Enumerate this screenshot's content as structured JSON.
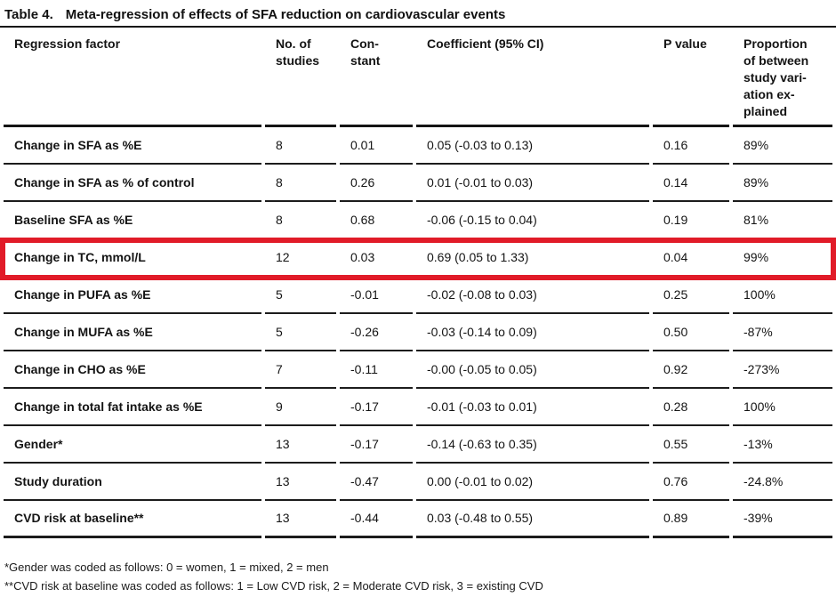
{
  "title": {
    "label": "Table 4.",
    "text": "Meta-regression of effects of SFA reduction on cardiovascular events"
  },
  "table": {
    "columns": {
      "factor": "Regression factor",
      "studies": "No. of\nstudies",
      "constant": "Con-\nstant",
      "coefficient": "Coefficient (95% CI)",
      "p_value": "P value",
      "proportion": "Proportion\nof between\nstudy vari-\nation ex-\nplained"
    },
    "rows": [
      {
        "factor": "Change in SFA as %E",
        "studies": "8",
        "constant": "0.01",
        "coefficient": "0.05 (-0.03 to 0.13)",
        "p_value": "0.16",
        "proportion": "89%",
        "highlighted": false
      },
      {
        "factor": "Change in SFA as % of control",
        "studies": "8",
        "constant": "0.26",
        "coefficient": "0.01 (-0.01 to 0.03)",
        "p_value": "0.14",
        "proportion": "89%",
        "highlighted": false
      },
      {
        "factor": "Baseline SFA as %E",
        "studies": "8",
        "constant": "0.68",
        "coefficient": "-0.06 (-0.15 to 0.04)",
        "p_value": "0.19",
        "proportion": "81%",
        "highlighted": false
      },
      {
        "factor": "Change in TC, mmol/L",
        "studies": "12",
        "constant": "0.03",
        "coefficient": "0.69 (0.05 to 1.33)",
        "p_value": "0.04",
        "proportion": "99%",
        "highlighted": true
      },
      {
        "factor": "Change in PUFA as %E",
        "studies": "5",
        "constant": "-0.01",
        "coefficient": "-0.02 (-0.08 to 0.03)",
        "p_value": "0.25",
        "proportion": "100%",
        "highlighted": false
      },
      {
        "factor": "Change in MUFA as %E",
        "studies": "5",
        "constant": "-0.26",
        "coefficient": "-0.03 (-0.14 to 0.09)",
        "p_value": "0.50",
        "proportion": "-87%",
        "highlighted": false
      },
      {
        "factor": "Change in CHO as %E",
        "studies": "7",
        "constant": "-0.11",
        "coefficient": "-0.00 (-0.05 to 0.05)",
        "p_value": "0.92",
        "proportion": "-273%",
        "highlighted": false
      },
      {
        "factor": "Change in total fat intake as %E",
        "studies": "9",
        "constant": "-0.17",
        "coefficient": "-0.01 (-0.03 to 0.01)",
        "p_value": "0.28",
        "proportion": "100%",
        "highlighted": false
      },
      {
        "factor": "Gender*",
        "studies": "13",
        "constant": "-0.17",
        "coefficient": "-0.14 (-0.63 to 0.35)",
        "p_value": "0.55",
        "proportion": "-13%",
        "highlighted": false
      },
      {
        "factor": "Study duration",
        "studies": "13",
        "constant": "-0.47",
        "coefficient": "0.00 (-0.01 to 0.02)",
        "p_value": "0.76",
        "proportion": "-24.8%",
        "highlighted": false
      },
      {
        "factor": "CVD risk at baseline**",
        "studies": "13",
        "constant": "-0.44",
        "coefficient": "0.03 (-0.48 to 0.55)",
        "p_value": "0.89",
        "proportion": "-39%",
        "highlighted": false
      }
    ]
  },
  "footnotes": [
    "*Gender was coded as follows: 0 = women, 1 = mixed, 2 = men",
    "**CVD risk at baseline was coded as follows: 1 = Low CVD risk, 2 = Moderate CVD risk, 3 = existing CVD"
  ],
  "colors": {
    "highlight_red": "#e11b28",
    "rule_black": "#141414"
  }
}
